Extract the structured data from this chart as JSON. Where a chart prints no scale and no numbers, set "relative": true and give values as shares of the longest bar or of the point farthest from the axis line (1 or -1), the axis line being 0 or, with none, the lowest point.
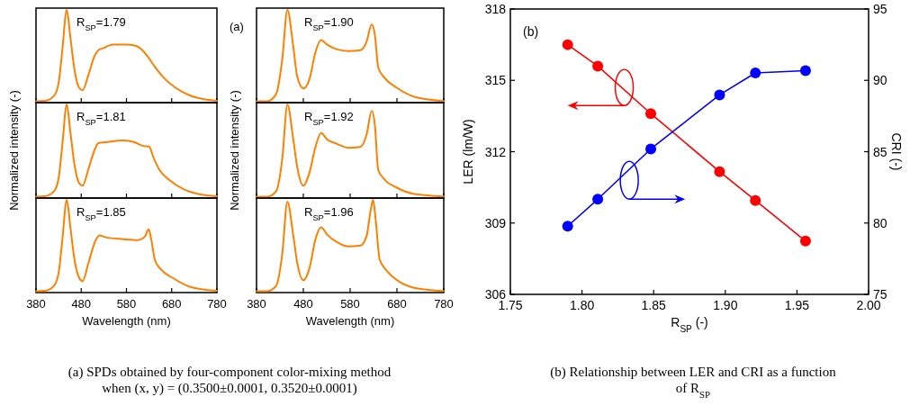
{
  "chart_data": [
    {
      "type": "line",
      "relative": true,
      "xlim": [
        380,
        780
      ],
      "xticks": [
        380,
        480,
        580,
        680,
        780
      ],
      "tick_labels": false,
      "annotations": [
        "R$_{SP}$=1.79"
      ],
      "series": [
        {
          "color": "#ff8000",
          "x": [
            380,
            400,
            420,
            430,
            438,
            448,
            456,
            465,
            475,
            483,
            496,
            509,
            518,
            528,
            550,
            579,
            598,
            617,
            630,
            643,
            662,
            688,
            720,
            752,
            780
          ],
          "values": [
            0,
            0.005,
            0.06,
            0.2,
            0.55,
            1,
            0.7,
            0.35,
            0.15,
            0.12,
            0.29,
            0.49,
            0.56,
            0.58,
            0.62,
            0.62,
            0.61,
            0.55,
            0.47,
            0.375,
            0.26,
            0.15,
            0.064,
            0.022,
            0.005
          ]
        }
      ]
    },
    {
      "type": "line",
      "relative": true,
      "xlim": [
        380,
        780
      ],
      "xticks": [
        380,
        480,
        580,
        680,
        780
      ],
      "tick_labels": false,
      "ylabel": "Normalized intensity (-)",
      "annotations": [
        "R$_{SP}$=1.81"
      ],
      "series": [
        {
          "color": "#ff8000",
          "x": [
            380,
            400,
            420,
            430,
            438,
            448,
            456,
            465,
            475,
            483,
            496,
            509,
            518,
            534,
            573,
            598,
            617,
            630,
            640,
            653,
            675,
            707,
            739,
            780
          ],
          "values": [
            0,
            0.005,
            0.06,
            0.2,
            0.55,
            1,
            0.7,
            0.35,
            0.15,
            0.12,
            0.3,
            0.5,
            0.58,
            0.59,
            0.61,
            0.59,
            0.55,
            0.545,
            0.42,
            0.29,
            0.18,
            0.08,
            0.03,
            0.005
          ]
        }
      ]
    },
    {
      "type": "line",
      "relative": true,
      "xlim": [
        380,
        780
      ],
      "xticks": [
        380,
        480,
        580,
        680,
        780
      ],
      "tick_labels": "x",
      "xlabel": "Wavelength (nm)",
      "annotations": [
        "R$_{SP}$=1.85",
        "(a) SPDs obtained by four-component color-mixing method when (x, y) = (0.3500±0.0001, 0.3520±0.0001)"
      ],
      "series": [
        {
          "color": "#ff8000",
          "x": [
            380,
            400,
            420,
            430,
            438,
            448,
            456,
            465,
            475,
            483,
            496,
            512,
            521,
            534,
            573,
            605,
            621,
            629,
            635,
            643,
            656,
            681,
            720,
            780
          ],
          "values": [
            0,
            0.005,
            0.06,
            0.2,
            0.55,
            1,
            0.7,
            0.35,
            0.15,
            0.11,
            0.31,
            0.56,
            0.61,
            0.59,
            0.57,
            0.56,
            0.6,
            0.68,
            0.56,
            0.34,
            0.24,
            0.15,
            0.05,
            0.005
          ]
        }
      ]
    },
    {
      "type": "line",
      "relative": true,
      "xlim": [
        380,
        780
      ],
      "xticks": [
        380,
        480,
        580,
        680,
        780
      ],
      "tick_labels": false,
      "annotations": [
        "R$_{SP}$=1.90",
        "(a)"
      ],
      "series": [
        {
          "color": "#ff8000",
          "x": [
            380,
            403,
            422,
            435,
            446,
            458,
            467,
            480,
            493,
            506,
            518,
            531,
            551,
            576,
            602,
            615,
            626,
            633,
            640,
            653,
            679,
            717,
            780
          ],
          "values": [
            0,
            0,
            0.08,
            0.46,
            1,
            0.62,
            0.27,
            0.14,
            0.24,
            0.54,
            0.67,
            0.62,
            0.57,
            0.55,
            0.56,
            0.65,
            0.84,
            0.72,
            0.37,
            0.26,
            0.15,
            0.05,
            0.003
          ]
        }
      ]
    },
    {
      "type": "line",
      "relative": true,
      "xlim": [
        380,
        780
      ],
      "xticks": [
        380,
        480,
        580,
        680,
        780
      ],
      "tick_labels": false,
      "ylabel": "Normalized intensity (-)",
      "annotations": [
        "R$_{SP}$=1.92"
      ],
      "series": [
        {
          "color": "#ff8000",
          "x": [
            380,
            403,
            422,
            435,
            446,
            458,
            467,
            480,
            493,
            506,
            518,
            531,
            551,
            576,
            602,
            615,
            626,
            633,
            640,
            653,
            679,
            717,
            780
          ],
          "values": [
            0,
            0,
            0.06,
            0.41,
            1,
            0.64,
            0.32,
            0.12,
            0.26,
            0.54,
            0.69,
            0.62,
            0.575,
            0.53,
            0.54,
            0.67,
            0.93,
            0.77,
            0.29,
            0.19,
            0.1,
            0.03,
            0.003
          ]
        }
      ]
    },
    {
      "type": "line",
      "relative": true,
      "xlim": [
        380,
        780
      ],
      "xticks": [
        380,
        480,
        580,
        680,
        780
      ],
      "tick_labels": "x",
      "xlabel": "Wavelength (nm)",
      "annotations": [
        "R$_{SP}$=1.96"
      ],
      "series": [
        {
          "color": "#ff8000",
          "x": [
            380,
            403,
            422,
            435,
            446,
            458,
            467,
            480,
            493,
            506,
            518,
            531,
            551,
            576,
            602,
            615,
            624,
            629,
            635,
            643,
            659,
            685,
            724,
            780
          ],
          "values": [
            0,
            0,
            0.06,
            0.41,
            0.98,
            0.63,
            0.31,
            0.12,
            0.25,
            0.57,
            0.7,
            0.62,
            0.54,
            0.49,
            0.5,
            0.6,
            0.89,
            1,
            0.76,
            0.35,
            0.22,
            0.105,
            0.03,
            0.003
          ]
        }
      ]
    },
    {
      "type": "line",
      "marker": "circle",
      "xlim": [
        1.75,
        2.0
      ],
      "xticks": [
        {
          "value": 1.75,
          "label": "1.75"
        },
        {
          "value": 1.8,
          "label": "1.80"
        },
        {
          "value": 1.85,
          "label": "1.85"
        },
        {
          "value": 1.9,
          "label": "1.90"
        },
        {
          "value": 1.95,
          "label": "1.95"
        },
        {
          "value": 2.0,
          "label": "2.00"
        }
      ],
      "ylim": [
        306,
        318
      ],
      "yticks": [
        306,
        309,
        312,
        315,
        318
      ],
      "y2lim": [
        75,
        95
      ],
      "y2ticks": [
        75,
        80,
        85,
        90,
        95
      ],
      "xlabel": "R$_{SP}$ (-)",
      "ylabel": "LER (lm/W)",
      "y2label": "CRI (-)",
      "annotations": [
        "(b)",
        "(b) Relationship between LER and CRI as a function of R$_{SP}$"
      ],
      "x": [
        1.79,
        1.811,
        1.848,
        1.896,
        1.921,
        1.956
      ],
      "series": [
        {
          "color": "#ff0000",
          "values": [
            316.5,
            315.6,
            313.6,
            311.16,
            309.95,
            308.24
          ]
        },
        {
          "color": "#0000ff",
          "axis": "y2",
          "values": [
            79.78,
            81.67,
            85.19,
            88.98,
            90.52,
            90.68
          ]
        }
      ]
    }
  ]
}
